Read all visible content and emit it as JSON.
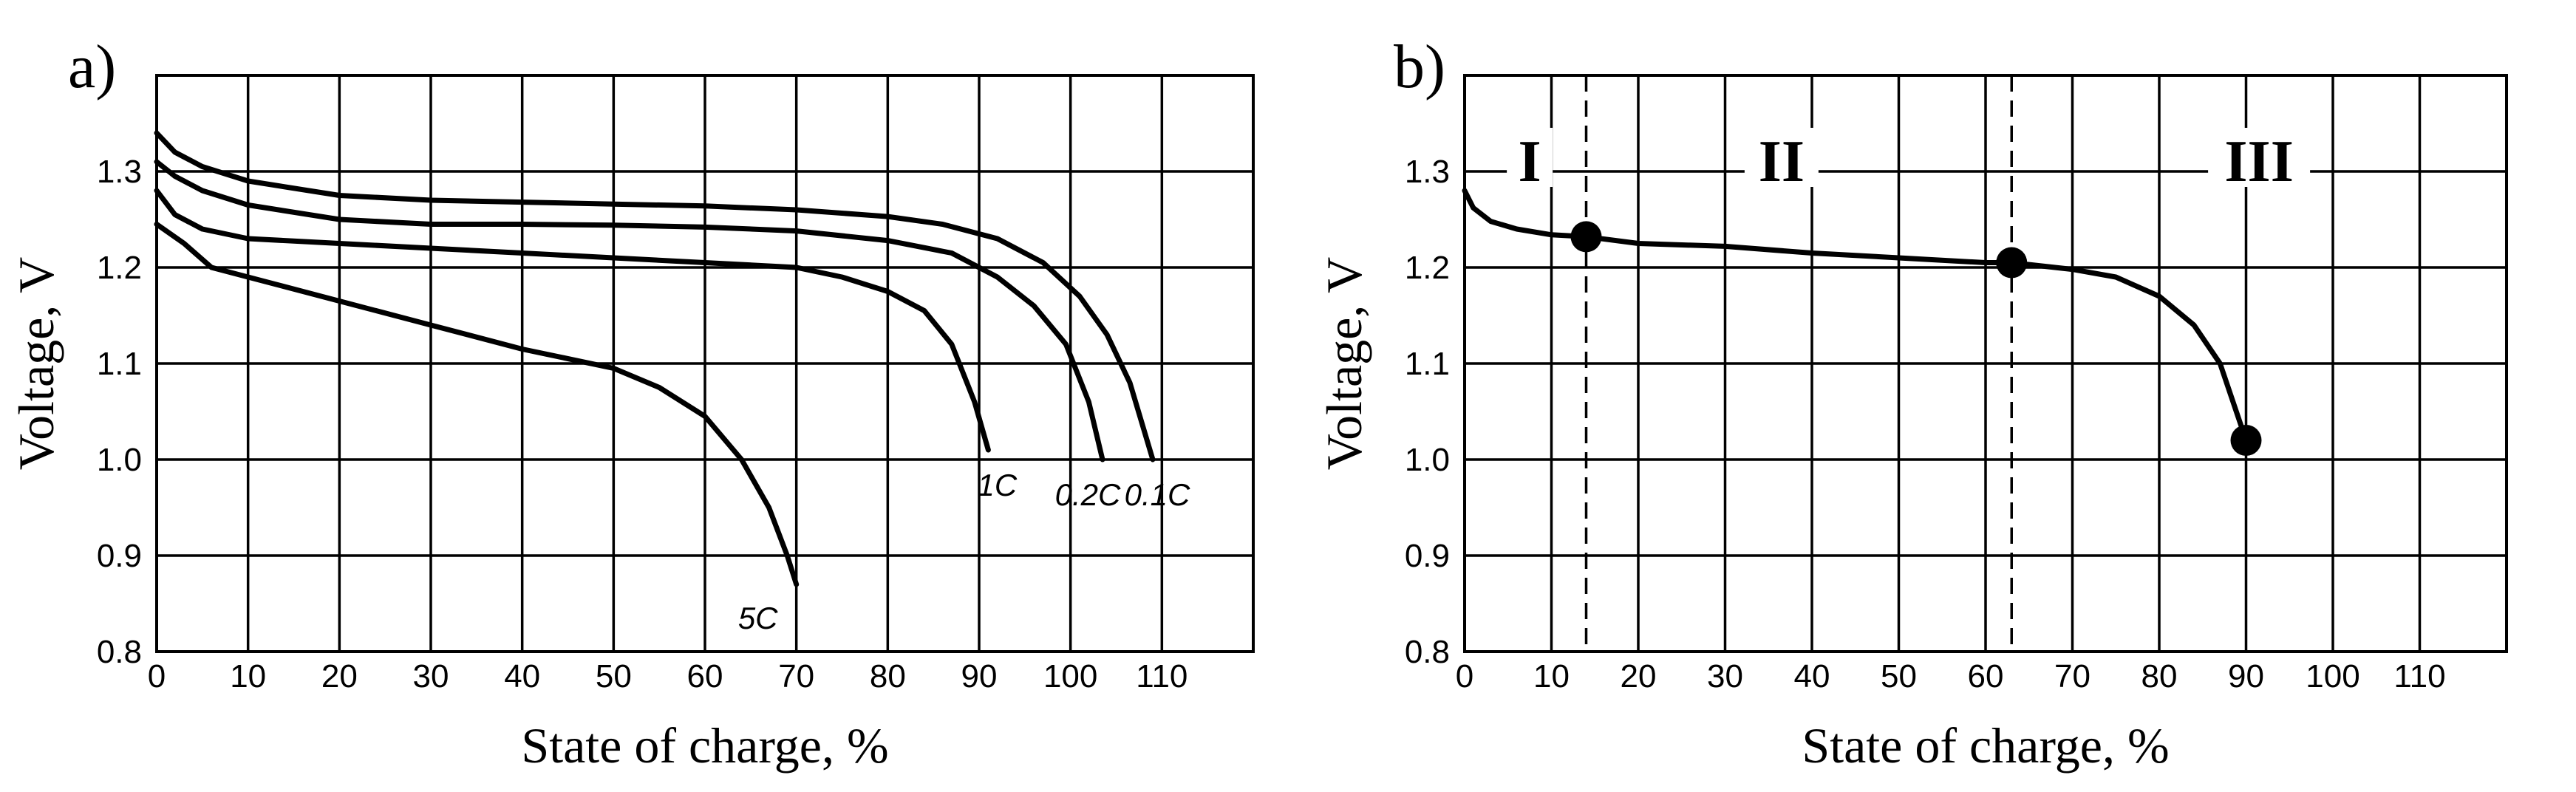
{
  "chart_data": [
    {
      "type": "line",
      "panel_label": "a)",
      "xlabel": "State of charge, %",
      "ylabel": "Voltage, V",
      "xlim": [
        0,
        120
      ],
      "ylim": [
        0.8,
        1.4
      ],
      "xticks": [
        0,
        10,
        20,
        30,
        40,
        50,
        60,
        70,
        80,
        90,
        100,
        110
      ],
      "yticks": [
        0.8,
        0.9,
        1.0,
        1.1,
        1.2,
        1.3
      ],
      "grid": true,
      "series": [
        {
          "name": "0.1C",
          "x": [
            0,
            2,
            5,
            10,
            20,
            30,
            40,
            50,
            60,
            70,
            80,
            86,
            92,
            97,
            101,
            104,
            106.5,
            109
          ],
          "y": [
            1.34,
            1.32,
            1.305,
            1.29,
            1.275,
            1.27,
            1.268,
            1.266,
            1.264,
            1.26,
            1.253,
            1.245,
            1.23,
            1.205,
            1.17,
            1.13,
            1.08,
            1.0
          ]
        },
        {
          "name": "0.2C",
          "x": [
            0,
            2,
            5,
            10,
            20,
            30,
            40,
            50,
            60,
            70,
            80,
            87,
            92,
            96,
            99.5,
            102,
            103.5
          ],
          "y": [
            1.31,
            1.295,
            1.28,
            1.265,
            1.25,
            1.245,
            1.245,
            1.244,
            1.242,
            1.238,
            1.228,
            1.215,
            1.19,
            1.16,
            1.12,
            1.06,
            1.0
          ]
        },
        {
          "name": "1C",
          "x": [
            0,
            2,
            5,
            10,
            20,
            30,
            40,
            50,
            60,
            70,
            75,
            80,
            84,
            87,
            89.5,
            91
          ],
          "y": [
            1.28,
            1.255,
            1.24,
            1.23,
            1.225,
            1.22,
            1.215,
            1.21,
            1.205,
            1.2,
            1.19,
            1.175,
            1.155,
            1.12,
            1.06,
            1.01
          ]
        },
        {
          "name": "5C",
          "x": [
            0,
            3,
            6,
            10,
            20,
            30,
            40,
            50,
            55,
            60,
            64,
            67,
            69,
            70
          ],
          "y": [
            1.245,
            1.225,
            1.2,
            1.19,
            1.165,
            1.14,
            1.115,
            1.095,
            1.075,
            1.045,
            1.0,
            0.95,
            0.9,
            0.87
          ]
        }
      ]
    },
    {
      "type": "line",
      "panel_label": "b)",
      "xlabel": "State of charge, %",
      "ylabel": "Voltage, V",
      "xlim": [
        0,
        120
      ],
      "ylim": [
        0.8,
        1.4
      ],
      "xticks": [
        0,
        10,
        20,
        30,
        40,
        50,
        60,
        70,
        80,
        90,
        100,
        110
      ],
      "yticks": [
        0.8,
        0.9,
        1.0,
        1.1,
        1.2,
        1.3
      ],
      "grid": true,
      "series": [
        {
          "x": [
            0,
            1,
            3,
            6,
            10,
            14,
            20,
            30,
            40,
            50,
            60,
            63,
            70,
            75,
            80,
            84,
            87,
            88.5,
            90
          ],
          "y": [
            1.28,
            1.262,
            1.248,
            1.24,
            1.234,
            1.232,
            1.225,
            1.222,
            1.215,
            1.21,
            1.205,
            1.205,
            1.198,
            1.19,
            1.17,
            1.14,
            1.1,
            1.06,
            1.02
          ]
        }
      ],
      "points": [
        {
          "x": 14,
          "y": 1.232
        },
        {
          "x": 63,
          "y": 1.205
        },
        {
          "x": 90,
          "y": 1.02
        }
      ],
      "dashed_vlines": [
        14,
        63
      ],
      "regions": [
        {
          "label": "I",
          "x": 7.5,
          "y": 1.31
        },
        {
          "label": "II",
          "x": 36.5,
          "y": 1.31
        },
        {
          "label": "III",
          "x": 91.5,
          "y": 1.31
        }
      ]
    }
  ]
}
